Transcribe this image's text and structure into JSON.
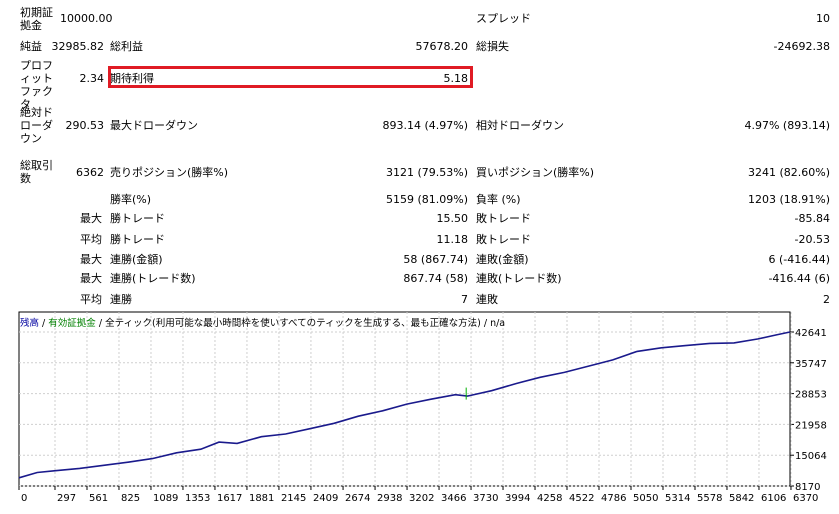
{
  "stats": {
    "initial_deposit": {
      "label": "初期証\n拠金",
      "value": "10000.00"
    },
    "spread": {
      "label": "スプレッド",
      "value": "10"
    },
    "net_profit": {
      "label": "純益",
      "value": "32985.82"
    },
    "gross_profit": {
      "label": "総利益",
      "value": "57678.20"
    },
    "gross_loss": {
      "label": "総損失",
      "value": "-24692.38"
    },
    "profit_factor": {
      "label": "プロフィットファクタ",
      "value": "2.34"
    },
    "expected_payoff": {
      "label": "期待利得",
      "value": "5.18"
    },
    "abs_drawdown": {
      "label": "絶対ドローダウン",
      "value": "290.53"
    },
    "max_drawdown": {
      "label": "最大ドローダウン",
      "value": "893.14 (4.97%)"
    },
    "rel_drawdown": {
      "label": "相対ドローダウン",
      "value": "4.97% (893.14)"
    },
    "total_trades": {
      "label": "総取引数",
      "value": "6362"
    },
    "short_positions": {
      "label": "売りポジション(勝率%)",
      "value": "3121 (79.53%)"
    },
    "long_positions": {
      "label": "買いポジション(勝率%)",
      "value": "3241 (82.60%)"
    },
    "profit_trades": {
      "label": "勝率(%)",
      "value": "5159 (81.09%)"
    },
    "loss_trades": {
      "label": "負率 (%)",
      "value": "1203 (18.91%)"
    },
    "largest": {
      "prefix": "最大",
      "profit_label": "勝トレード",
      "profit_value": "15.50",
      "loss_label": "敗トレード",
      "loss_value": "-85.84"
    },
    "average": {
      "prefix": "平均",
      "profit_label": "勝トレード",
      "profit_value": "11.18",
      "loss_label": "敗トレード",
      "loss_value": "-20.53"
    },
    "max_consecutive": {
      "prefix": "最大",
      "wins_label": "連勝(金額)",
      "wins_value": "58 (867.74)",
      "losses_label": "連敗(金額)",
      "losses_value": "6 (-416.44)"
    },
    "max_consecutive_money": {
      "prefix": "最大",
      "wins_label": "連勝(トレード数)",
      "wins_value": "867.74 (58)",
      "losses_label": "連敗(トレード数)",
      "losses_value": "-416.44 (6)"
    },
    "avg_consecutive": {
      "prefix": "平均",
      "wins_label": "連勝",
      "wins_value": "7",
      "losses_label": "連敗",
      "losses_value": "2"
    }
  },
  "chart": {
    "legend_balance": "残高",
    "legend_equity": "有効証拠金",
    "legend_model": "全ティック(利用可能な最小時間枠を使いすべてのティックを生成する、最も正確な方法)",
    "legend_na": "n/a",
    "line_color": "#1a1a8c",
    "marker_color": "#00b000"
  },
  "chart_data": {
    "type": "line",
    "x_ticks": [
      "0",
      "297",
      "561",
      "825",
      "1089",
      "1353",
      "1617",
      "1881",
      "2145",
      "2409",
      "2674",
      "2938",
      "3202",
      "3466",
      "3730",
      "3994",
      "4258",
      "4522",
      "4786",
      "5050",
      "5314",
      "5578",
      "5842",
      "6106",
      "6370"
    ],
    "y_ticks": [
      "42641",
      "35747",
      "28853",
      "21958",
      "15064",
      "8170"
    ],
    "ylim": [
      8170,
      42641
    ],
    "xlim": [
      0,
      6362
    ],
    "series": [
      {
        "x": [
          0,
          150,
          300,
          500,
          700,
          900,
          1100,
          1300,
          1500,
          1650,
          1800,
          2000,
          2200,
          2400,
          2600,
          2800,
          3000,
          3200,
          3400,
          3600,
          3700,
          3900,
          4100,
          4300,
          4500,
          4700,
          4900,
          5100,
          5300,
          5500,
          5700,
          5900,
          6100,
          6250,
          6362
        ],
        "values": [
          10000,
          11200,
          11600,
          12100,
          12800,
          13500,
          14300,
          15600,
          16400,
          18000,
          17700,
          19200,
          19800,
          21000,
          22200,
          23800,
          25000,
          26500,
          27600,
          28600,
          28300,
          29500,
          31100,
          32500,
          33600,
          35000,
          36400,
          38300,
          39100,
          39600,
          40100,
          40200,
          41100,
          42000,
          42641
        ]
      }
    ],
    "marker": {
      "x": 3690,
      "value": 30200
    }
  }
}
